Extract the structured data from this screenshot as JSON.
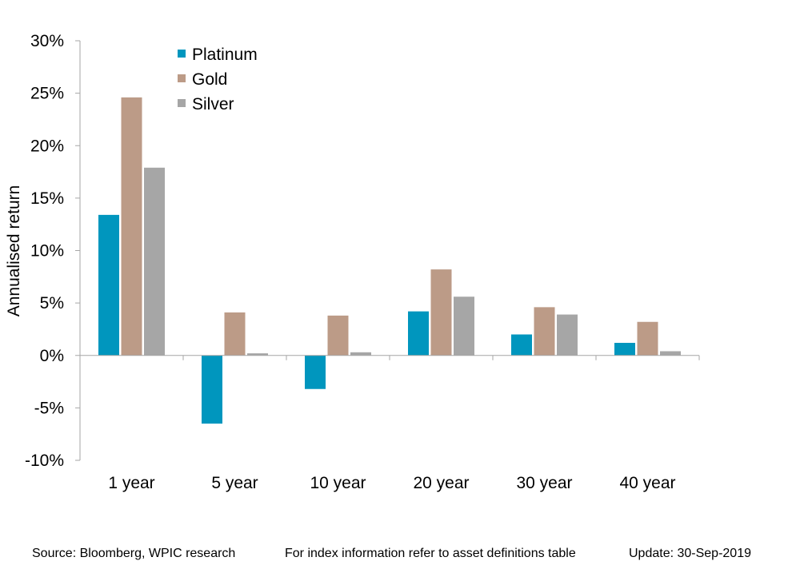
{
  "chart_data": {
    "type": "bar",
    "title": "",
    "xlabel": "",
    "ylabel": "Annualised return",
    "categories": [
      "1 year",
      "5 year",
      "10 year",
      "20 year",
      "30 year",
      "40 year"
    ],
    "series": [
      {
        "name": "Platinum",
        "color": "#0096BE",
        "values": [
          13.4,
          -6.5,
          -3.2,
          4.2,
          2.0,
          1.2
        ]
      },
      {
        "name": "Gold",
        "color": "#BC9B87",
        "values": [
          24.6,
          4.1,
          3.8,
          8.2,
          4.6,
          3.2
        ]
      },
      {
        "name": "Silver",
        "color": "#A6A6A6",
        "values": [
          17.9,
          0.2,
          0.3,
          5.6,
          3.9,
          0.4
        ]
      }
    ],
    "ylim": [
      -10,
      30
    ],
    "yticks": [
      -10,
      -5,
      0,
      5,
      10,
      15,
      20,
      25,
      30
    ],
    "ytick_labels": [
      "-10%",
      "-5%",
      "0%",
      "5%",
      "10%",
      "15%",
      "20%",
      "25%",
      "30%"
    ],
    "legend_position": "top-left",
    "grid": false
  },
  "footer": {
    "source": "Source: Bloomberg, WPIC research",
    "info": "For index information refer to asset definitions table",
    "update": "Update: 30-Sep-2019"
  }
}
